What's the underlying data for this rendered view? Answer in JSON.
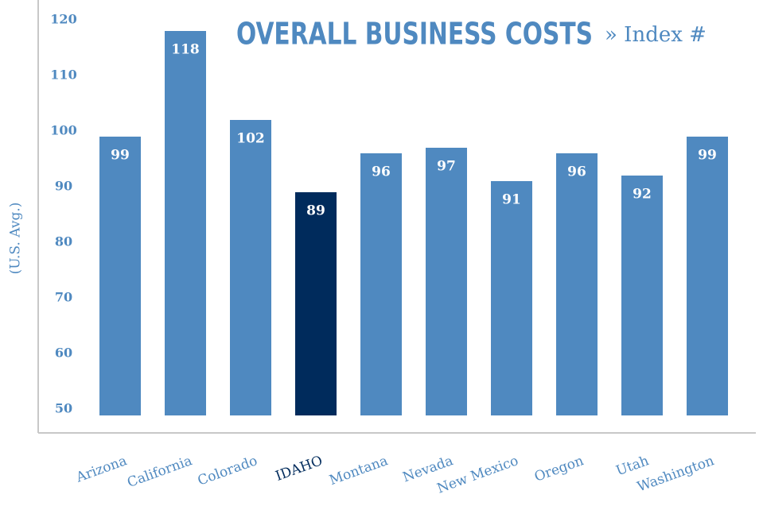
{
  "chart_data": {
    "type": "bar",
    "title": "OVERALL BUSINESS COSTS",
    "subtitle": "» Index #",
    "y_label": "(U.S. Avg.)",
    "categories": [
      "Arizona",
      "California",
      "Colorado",
      "IDAHO",
      "Montana",
      "Nevada",
      "New Mexico",
      "Oregon",
      "Utah",
      "Washington"
    ],
    "values": [
      99,
      118,
      102,
      89,
      96,
      97,
      91,
      96,
      92,
      99
    ],
    "colors": [
      "#4f89c0",
      "#4f89c0",
      "#4f89c0",
      "#002b5c",
      "#4f89c0",
      "#4f89c0",
      "#4f89c0",
      "#4f89c0",
      "#4f89c0",
      "#4f89c0"
    ],
    "ylim": [
      50,
      120
    ],
    "yticks": [
      50,
      60,
      70,
      80,
      90,
      100,
      110,
      120
    ],
    "grid": false
  }
}
